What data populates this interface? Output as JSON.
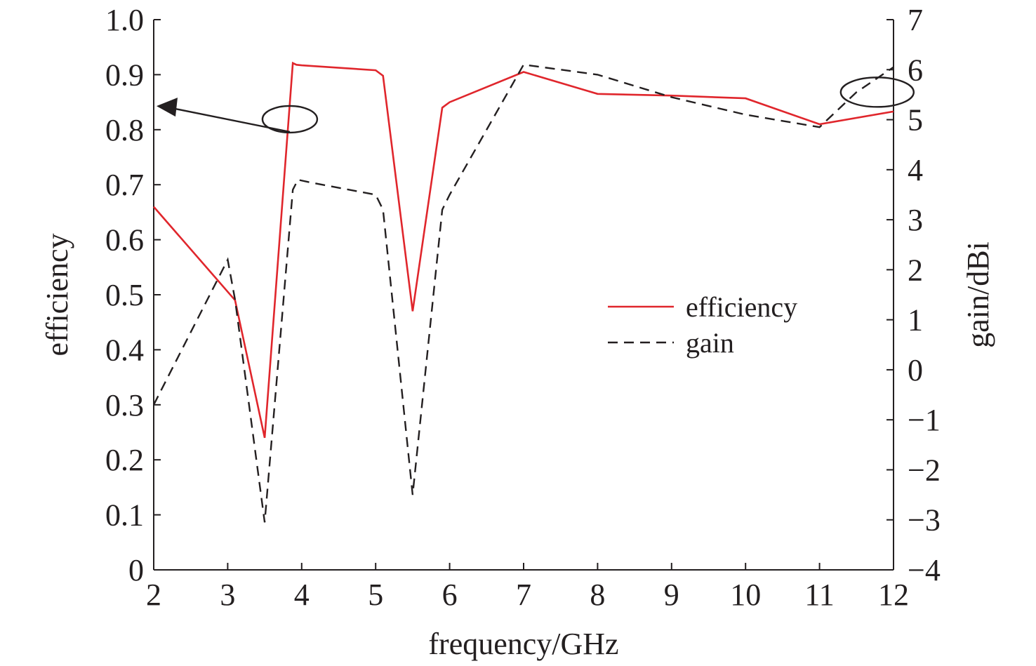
{
  "chart_data": {
    "type": "line",
    "title": "",
    "xlabel": "frequency/GHz",
    "ylabel": "efficiency",
    "y2label": "gain/dBi",
    "xlim": [
      2,
      12
    ],
    "ylim": [
      0,
      1.0
    ],
    "y2lim": [
      -4,
      7
    ],
    "x_ticks": [
      "2",
      "3",
      "4",
      "5",
      "6",
      "7",
      "8",
      "9",
      "10",
      "11",
      "12"
    ],
    "y_ticks": [
      "0",
      "0.1",
      "0.2",
      "0.3",
      "0.4",
      "0.5",
      "0.6",
      "0.7",
      "0.8",
      "0.9",
      "1.0"
    ],
    "y2_ticks": [
      "−4",
      "−3",
      "−2",
      "−1",
      "0",
      "1",
      "2",
      "3",
      "4",
      "5",
      "6",
      "7"
    ],
    "grid": false,
    "legend_position": "center-right",
    "series": [
      {
        "name": "efficiency",
        "axis": "left",
        "color": "#e0262c",
        "style": "solid",
        "x": [
          2,
          3.1,
          3.5,
          3.88,
          3.93,
          4.0,
          5.0,
          5.1,
          5.5,
          5.9,
          6.0,
          7.0,
          8.0,
          9.0,
          10.0,
          11.0,
          12.0
        ],
        "y": [
          0.66,
          0.49,
          0.24,
          0.921,
          0.918,
          0.917,
          0.908,
          0.898,
          0.47,
          0.84,
          0.85,
          0.905,
          0.865,
          0.862,
          0.857,
          0.81,
          0.833
        ]
      },
      {
        "name": "gain",
        "axis": "right",
        "color": "#231f20",
        "style": "dashed",
        "x": [
          2,
          3.0,
          3.1,
          3.5,
          3.88,
          3.95,
          4.1,
          5.0,
          5.1,
          5.5,
          5.9,
          6.0,
          7.0,
          8.0,
          9.0,
          10.0,
          11.0,
          11.5,
          12.0
        ],
        "y": [
          -0.7,
          2.2,
          1.4,
          -3.05,
          3.6,
          3.8,
          3.75,
          3.5,
          3.2,
          -2.5,
          3.2,
          3.5,
          6.1,
          5.9,
          5.45,
          5.1,
          4.85,
          5.55,
          6.05
        ]
      }
    ],
    "legend": [
      {
        "label": "efficiency",
        "color": "#e0262c",
        "style": "solid"
      },
      {
        "label": "gain",
        "color": "#231f20",
        "style": "dashed"
      }
    ],
    "annotations": [
      {
        "type": "ellipse-with-arrow",
        "points_to": "left axis",
        "marks_series": "efficiency"
      },
      {
        "type": "ellipse",
        "points_to": "right axis",
        "marks_series": "gain"
      }
    ]
  }
}
